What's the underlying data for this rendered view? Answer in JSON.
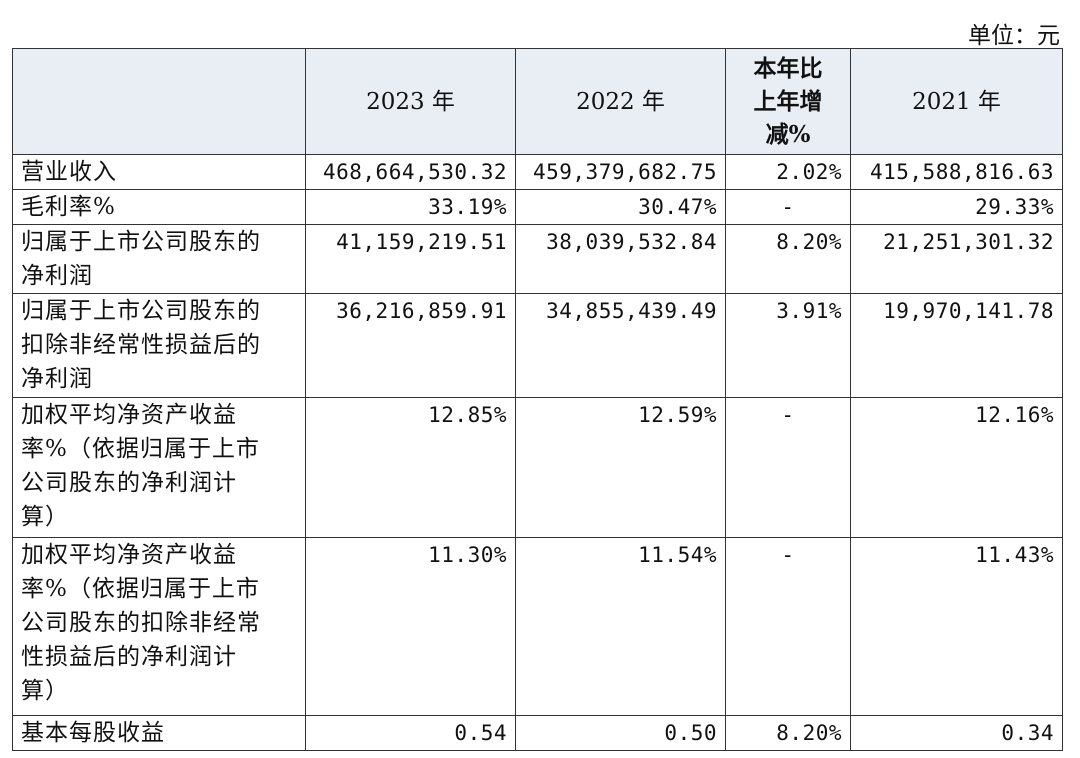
{
  "unit": "单位：元",
  "table": {
    "header": [
      "2023 年",
      "2022 年",
      [
        "本年比",
        "上年增",
        "减%"
      ],
      "2021 年"
    ],
    "rows": [
      {
        "label": [
          "营业收入"
        ],
        "values": [
          "468,664,530.32",
          "459,379,682.75",
          "2.02%",
          "415,588,816.63"
        ]
      },
      {
        "label": [
          "毛利率%"
        ],
        "values": [
          "33.19%",
          "30.47%",
          "-",
          "29.33%"
        ]
      },
      {
        "label": [
          "归属于上市公司股东的",
          "净利润"
        ],
        "values": [
          "41,159,219.51",
          "38,039,532.84",
          "8.20%",
          "21,251,301.32"
        ]
      },
      {
        "label": [
          "归属于上市公司股东的",
          "扣除非经常性损益后的",
          "净利润"
        ],
        "values": [
          "36,216,859.91",
          "34,855,439.49",
          "3.91%",
          "19,970,141.78"
        ]
      },
      {
        "label": [
          "加权平均净资产收益",
          "率%（依据归属于上市",
          "公司股东的净利润计",
          "算）"
        ],
        "values": [
          "12.85%",
          "12.59%",
          "-",
          "12.16%"
        ]
      },
      {
        "label": [
          "加权平均净资产收益",
          "率%（依据归属于上市",
          "公司股东的扣除非经常",
          "性损益后的净利润计",
          "算）"
        ],
        "values": [
          "11.30%",
          "11.54%",
          "-",
          "11.43%"
        ]
      },
      {
        "label": [
          "基本每股收益"
        ],
        "values": [
          "0.54",
          "0.50",
          "8.20%",
          "0.34"
        ]
      }
    ]
  }
}
